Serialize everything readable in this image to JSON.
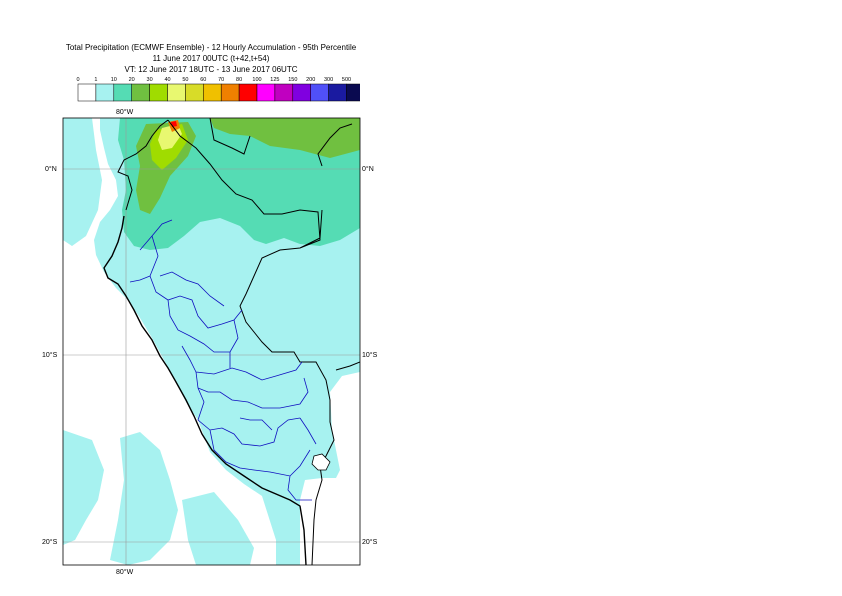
{
  "title": {
    "line1": "Total Precipitation (ECMWF Ensemble) - 12 Hourly Accumulation - 95th Percentile",
    "line2": "11 June 2017 00UTC (t+42,t+54)",
    "line3": "VT: 12 June 2017 18UTC - 13 June 2017 06UTC"
  },
  "legend": {
    "ticks": [
      "0",
      "1",
      "10",
      "20",
      "30",
      "40",
      "50",
      "60",
      "70",
      "80",
      "100",
      "125",
      "150",
      "200",
      "300",
      "500"
    ],
    "colors": [
      "#ffffff",
      "#a7f2f0",
      "#55dcb4",
      "#70c040",
      "#a0dc00",
      "#e8f870",
      "#d8dc28",
      "#f0c000",
      "#f08000",
      "#ff0000",
      "#ff00ff",
      "#c000c0",
      "#8000e0",
      "#5050f8",
      "#1a1aa0",
      "#0a0a50"
    ]
  },
  "map": {
    "lat_labels": [
      "0°N",
      "10°S",
      "20°S"
    ],
    "lon_labels": [
      "80°W",
      "80°W"
    ]
  }
}
